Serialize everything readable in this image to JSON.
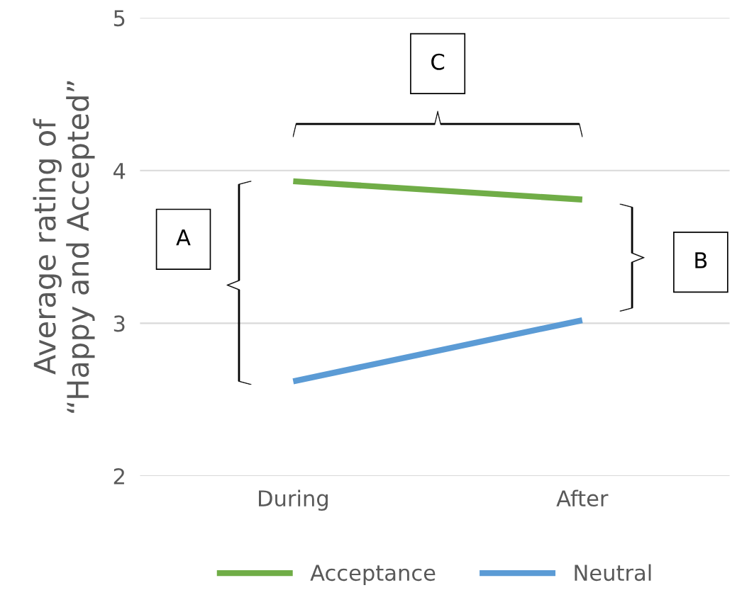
{
  "chart_data": {
    "type": "line",
    "ylabel": "Average rating of\n“Happy and Accepted”",
    "categories": [
      "During",
      "After"
    ],
    "series": [
      {
        "name": "Acceptance",
        "color": "#70ad47",
        "values": [
          3.93,
          3.81
        ]
      },
      {
        "name": "Neutral",
        "color": "#5b9bd5",
        "values": [
          2.62,
          3.02
        ]
      }
    ],
    "ylim": [
      2,
      5
    ],
    "yticks": [
      2,
      3,
      4,
      5
    ],
    "grid": "y",
    "legend": "bottom",
    "marker": "none",
    "line_style": "solid",
    "annotations": [
      "A",
      "B",
      "C"
    ]
  }
}
